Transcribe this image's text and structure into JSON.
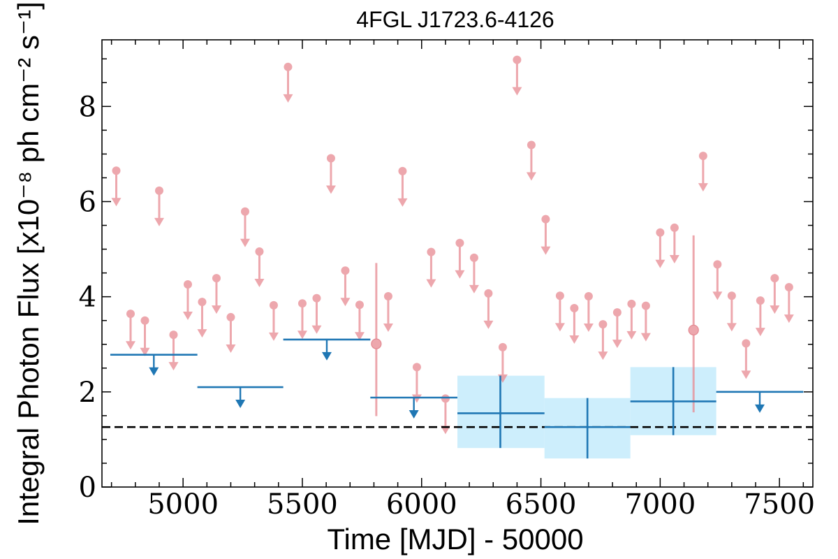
{
  "chart_data": {
    "type": "scatter",
    "title": "4FGL J1723.6-4126",
    "xlabel": "Time [MJD] - 50000",
    "ylabel": "Integral Photon Flux [x10⁻⁸ ph cm⁻² s⁻¹]",
    "xlim": [
      4660,
      7640
    ],
    "ylim": [
      0,
      9.4
    ],
    "xticks": [
      "5000",
      "5500",
      "6000",
      "6500",
      "7000",
      "7500"
    ],
    "yticks": [
      "0",
      "2",
      "4",
      "6",
      "8"
    ],
    "baseline": 1.26,
    "colors": {
      "short_bins": "#e88a92",
      "long_bins": "#1f77b4",
      "error_band": "#cdeefc",
      "baseline": "#000000"
    },
    "short_bin_upper_limits": {
      "x": [
        4720,
        4780,
        4840,
        4900,
        4960,
        5020,
        5080,
        5140,
        5200,
        5260,
        5320,
        5380,
        5440,
        5500,
        5560,
        5620,
        5680,
        5740,
        5860,
        5920,
        5980,
        6040,
        6100,
        6160,
        6220,
        6280,
        6340,
        6400,
        6460,
        6520,
        6580,
        6640,
        6700,
        6760,
        6820,
        6880,
        6940,
        7000,
        7060,
        7180,
        7240,
        7300,
        7360,
        7420,
        7480,
        7540
      ],
      "y": [
        6.65,
        3.64,
        3.5,
        6.23,
        3.2,
        4.26,
        3.89,
        4.39,
        3.57,
        5.79,
        4.95,
        3.82,
        8.83,
        3.86,
        3.97,
        6.91,
        4.55,
        3.83,
        4.01,
        6.64,
        2.52,
        4.94,
        1.86,
        5.13,
        4.82,
        4.07,
        2.94,
        8.98,
        7.19,
        5.63,
        4.02,
        3.76,
        4.01,
        3.42,
        3.67,
        3.85,
        3.81,
        5.35,
        5.45,
        6.96,
        4.68,
        4.02,
        3.02,
        3.92,
        4.39,
        4.2
      ]
    },
    "short_bin_detections": [
      {
        "x": 5810,
        "y": 3.01,
        "ylow": 1.49,
        "yhigh": 4.71
      },
      {
        "x": 7140,
        "y": 3.3,
        "ylow": 1.57,
        "yhigh": 5.29
      }
    ],
    "long_bin_upper_limits": [
      {
        "xmin": 4695,
        "xmax": 5060,
        "y": 2.78
      },
      {
        "xmin": 5060,
        "xmax": 5420,
        "y": 2.1
      },
      {
        "xmin": 5420,
        "xmax": 5785,
        "y": 3.1
      },
      {
        "xmin": 5785,
        "xmax": 6150,
        "y": 1.88
      },
      {
        "xmin": 7235,
        "xmax": 7600,
        "y": 2.0
      }
    ],
    "long_bin_detections": [
      {
        "xmin": 6150,
        "xmax": 6515,
        "x": 6330,
        "y": 1.55,
        "ylow": 0.82,
        "yhigh": 2.34
      },
      {
        "xmin": 6515,
        "xmax": 6875,
        "x": 6695,
        "y": 1.26,
        "ylow": 0.6,
        "yhigh": 1.87
      },
      {
        "xmin": 6875,
        "xmax": 7235,
        "x": 7055,
        "y": 1.8,
        "ylow": 1.09,
        "yhigh": 2.52
      }
    ]
  }
}
